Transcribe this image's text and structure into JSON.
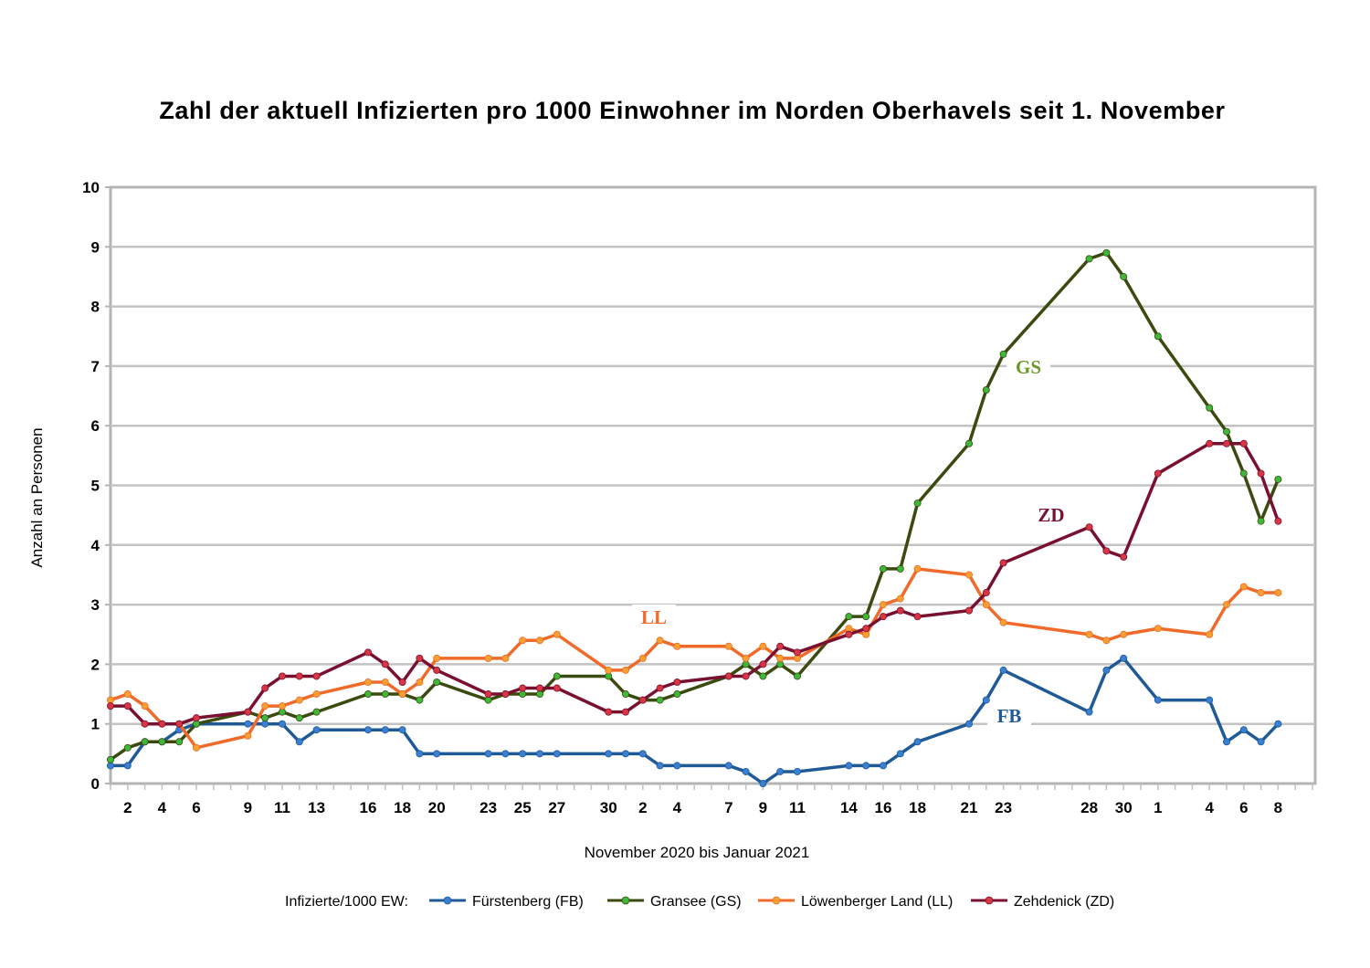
{
  "chart_data": {
    "type": "line",
    "title": "Zahl der aktuell Infizierten pro 1000 Einwohner im Norden Oberhavels seit 1. November",
    "xlabel": "November 2020 bis Januar 2021",
    "ylabel": "Anzahl an Personen",
    "ylim": [
      0,
      10
    ],
    "yticks": [
      "0",
      "1",
      "2",
      "3",
      "4",
      "5",
      "6",
      "7",
      "8",
      "9",
      "10"
    ],
    "xlim": [
      "2020-11-01",
      "2021-01-10"
    ],
    "xtick_dates": [
      "2020-11-02",
      "2020-11-04",
      "2020-11-06",
      "2020-11-09",
      "2020-11-11",
      "2020-11-13",
      "2020-11-16",
      "2020-11-18",
      "2020-11-20",
      "2020-11-23",
      "2020-11-25",
      "2020-11-27",
      "2020-11-30",
      "2020-12-02",
      "2020-12-04",
      "2020-12-07",
      "2020-12-09",
      "2020-12-11",
      "2020-12-14",
      "2020-12-16",
      "2020-12-18",
      "2020-12-21",
      "2020-12-23",
      "2020-12-28",
      "2020-12-30",
      "2021-01-01",
      "2021-01-04",
      "2021-01-06",
      "2021-01-08"
    ],
    "xtick_labels": [
      "2",
      "4",
      "6",
      "9",
      "11",
      "13",
      "16",
      "18",
      "20",
      "23",
      "25",
      "27",
      "30",
      "2",
      "4",
      "7",
      "9",
      "11",
      "14",
      "16",
      "18",
      "21",
      "23",
      "28",
      "30",
      "1",
      "4",
      "6",
      "8"
    ],
    "grid": true,
    "legend_position": "bottom",
    "legend_title": "Infizierte/1000 EW:",
    "x": [
      "2020-11-01",
      "2020-11-02",
      "2020-11-03",
      "2020-11-04",
      "2020-11-05",
      "2020-11-06",
      "2020-11-09",
      "2020-11-10",
      "2020-11-11",
      "2020-11-12",
      "2020-11-13",
      "2020-11-16",
      "2020-11-17",
      "2020-11-18",
      "2020-11-19",
      "2020-11-20",
      "2020-11-23",
      "2020-11-24",
      "2020-11-25",
      "2020-11-26",
      "2020-11-27",
      "2020-11-30",
      "2020-12-01",
      "2020-12-02",
      "2020-12-03",
      "2020-12-04",
      "2020-12-07",
      "2020-12-08",
      "2020-12-09",
      "2020-12-10",
      "2020-12-11",
      "2020-12-14",
      "2020-12-15",
      "2020-12-16",
      "2020-12-17",
      "2020-12-18",
      "2020-12-21",
      "2020-12-22",
      "2020-12-23",
      "2020-12-28",
      "2020-12-29",
      "2020-12-30",
      "2021-01-01",
      "2021-01-04",
      "2021-01-05",
      "2021-01-06",
      "2021-01-07",
      "2021-01-08"
    ],
    "series": [
      {
        "name": "Fürstenberg (FB)",
        "label": "FB",
        "line_color": "#1f5a96",
        "marker_color": "#3a7fd0",
        "values": [
          0.3,
          0.3,
          0.7,
          0.7,
          0.9,
          1.0,
          1.0,
          1.0,
          1.0,
          0.7,
          0.9,
          0.9,
          0.9,
          0.9,
          0.5,
          0.5,
          0.5,
          0.5,
          0.5,
          0.5,
          0.5,
          0.5,
          0.5,
          0.5,
          0.3,
          0.3,
          0.3,
          0.2,
          0.0,
          0.2,
          0.2,
          0.3,
          0.3,
          0.3,
          0.5,
          0.7,
          1.0,
          1.4,
          1.9,
          1.2,
          1.9,
          2.1,
          1.4,
          1.4,
          0.7,
          0.9,
          0.7,
          1.0
        ]
      },
      {
        "name": "Gransee (GS)",
        "label": "GS",
        "line_color": "#3b4a0f",
        "marker_color": "#3fb83a",
        "label_color": "#6b9a2a",
        "values": [
          0.4,
          0.6,
          0.7,
          0.7,
          0.7,
          1.0,
          1.2,
          1.1,
          1.2,
          1.1,
          1.2,
          1.5,
          1.5,
          1.5,
          1.4,
          1.7,
          1.4,
          1.5,
          1.5,
          1.5,
          1.8,
          1.8,
          1.5,
          1.4,
          1.4,
          1.5,
          1.8,
          2.0,
          1.8,
          2.0,
          1.8,
          2.8,
          2.8,
          3.6,
          3.6,
          4.7,
          5.7,
          6.6,
          7.2,
          8.8,
          8.9,
          8.5,
          7.5,
          6.3,
          5.9,
          5.2,
          4.4,
          5.1
        ]
      },
      {
        "name": "Löwenberger Land (LL)",
        "label": "LL",
        "line_color": "#f06a2a",
        "marker_color": "#f5a030",
        "values": [
          1.4,
          1.5,
          1.3,
          1.0,
          1.0,
          0.6,
          0.8,
          1.3,
          1.3,
          1.4,
          1.5,
          1.7,
          1.7,
          1.5,
          1.7,
          2.1,
          2.1,
          2.1,
          2.4,
          2.4,
          2.5,
          1.9,
          1.9,
          2.1,
          2.4,
          2.3,
          2.3,
          2.1,
          2.3,
          2.1,
          2.1,
          2.6,
          2.5,
          3.0,
          3.1,
          3.6,
          3.5,
          3.0,
          2.7,
          2.5,
          2.4,
          2.5,
          2.6,
          2.5,
          3.0,
          3.3,
          3.2,
          3.2
        ]
      },
      {
        "name": "Zehdenick (ZD)",
        "label": "ZD",
        "line_color": "#7a1030",
        "marker_color": "#d83545",
        "values": [
          1.3,
          1.3,
          1.0,
          1.0,
          1.0,
          1.1,
          1.2,
          1.6,
          1.8,
          1.8,
          1.8,
          2.2,
          2.0,
          1.7,
          2.1,
          1.9,
          1.5,
          1.5,
          1.6,
          1.6,
          1.6,
          1.2,
          1.2,
          1.4,
          1.6,
          1.7,
          1.8,
          1.8,
          2.0,
          2.3,
          2.2,
          2.5,
          2.6,
          2.8,
          2.9,
          2.8,
          2.9,
          3.2,
          3.7,
          4.3,
          3.9,
          3.8,
          5.2,
          5.7,
          5.7,
          5.7,
          5.2,
          4.4
        ]
      }
    ]
  }
}
